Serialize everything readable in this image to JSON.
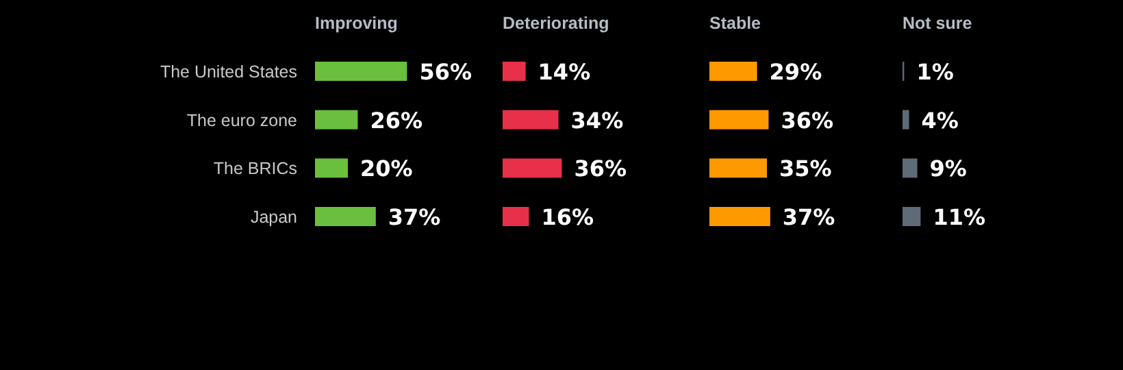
{
  "chart_data": [
    {
      "type": "bar",
      "orientation": "horizontal",
      "title": "Improving",
      "categories": [
        "The United States",
        "The euro zone",
        "The BRICs",
        "Japan"
      ],
      "values": [
        56,
        26,
        20,
        37
      ],
      "value_labels": [
        "56%",
        "26%",
        "20%",
        "37%"
      ],
      "color": "#6abf3e",
      "tick_labels": "y"
    },
    {
      "type": "bar",
      "orientation": "horizontal",
      "title": "Deteriorating",
      "categories": [
        null,
        null,
        null,
        null
      ],
      "values": [
        14,
        34,
        36,
        16
      ],
      "value_labels": [
        "14%",
        "34%",
        "36%",
        "16%"
      ],
      "color": "#e8304a",
      "tick_labels": false
    },
    {
      "type": "bar",
      "orientation": "horizontal",
      "title": "Stable",
      "categories": [
        null,
        null,
        null,
        null
      ],
      "values": [
        29,
        36,
        35,
        37
      ],
      "value_labels": [
        "29%",
        "36%",
        "35%",
        "37%"
      ],
      "color": "#ff9900",
      "tick_labels": false
    },
    {
      "type": "bar",
      "orientation": "horizontal",
      "title": "Not sure",
      "categories": [
        null,
        null,
        null,
        null
      ],
      "values": [
        1,
        4,
        9,
        11
      ],
      "value_labels": [
        "1%",
        "4%",
        "9%",
        "11%"
      ],
      "color": "#5f6b78",
      "tick_labels": false
    }
  ]
}
